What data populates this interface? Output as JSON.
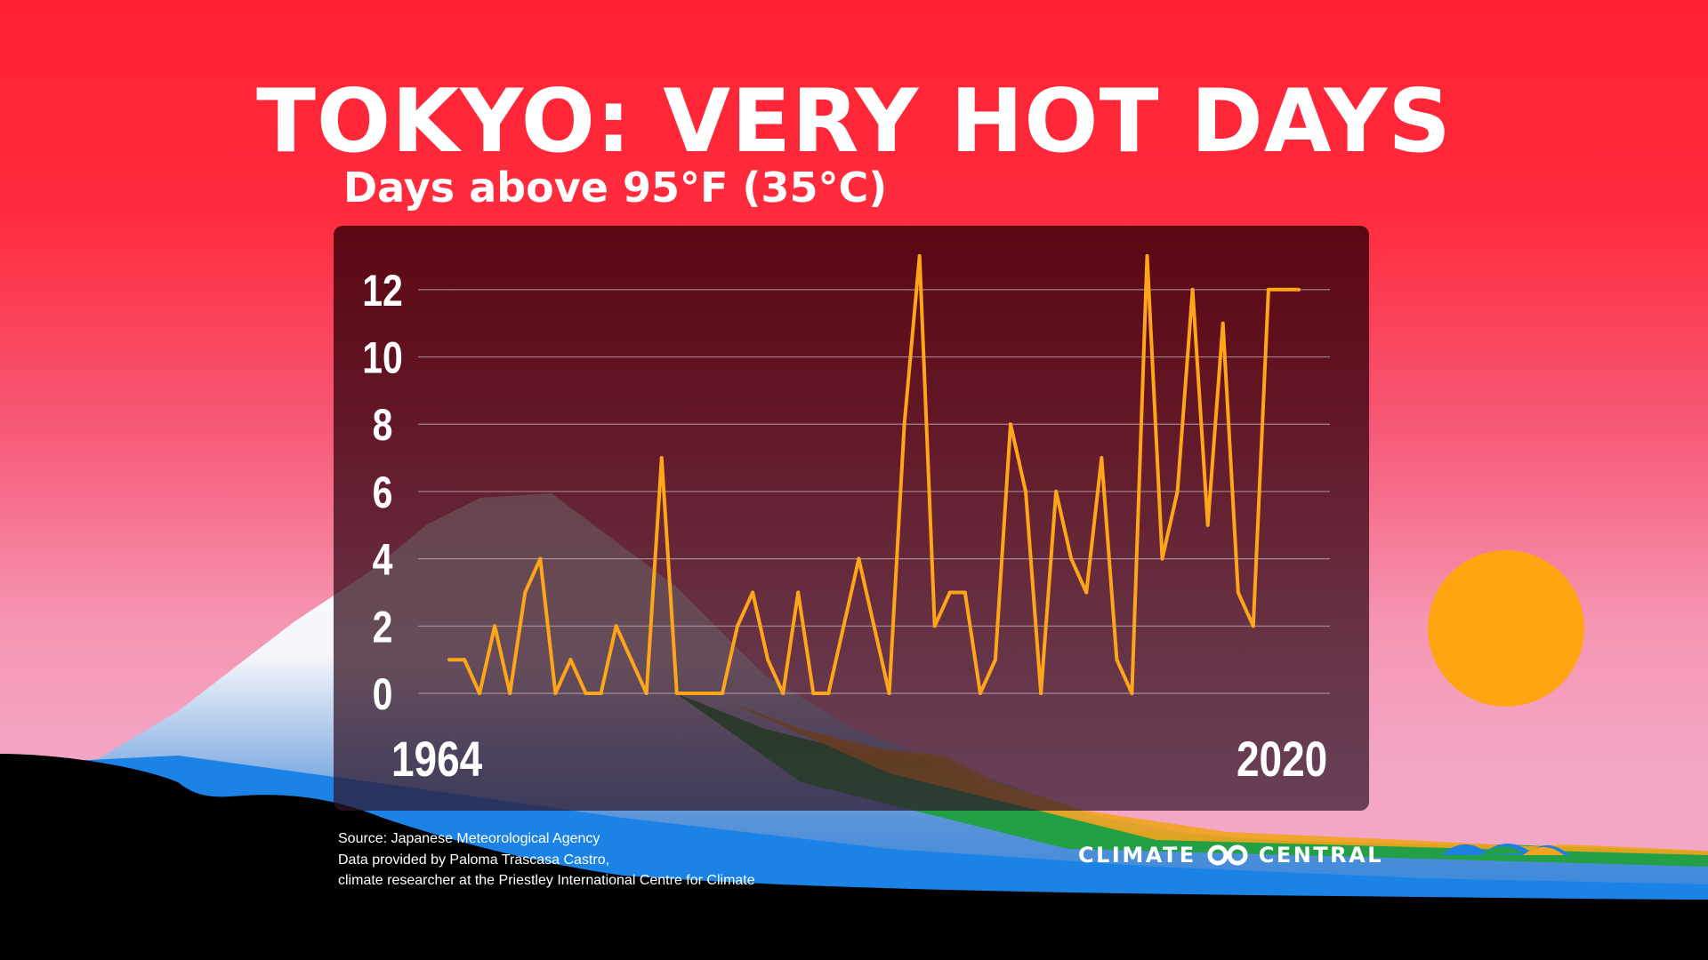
{
  "header": {
    "title": "TOKYO: VERY HOT DAYS",
    "subtitle": "Days above 95°F (35°C)"
  },
  "chart_data": {
    "type": "line",
    "title": "TOKYO: VERY HOT DAYS",
    "subtitle": "Days above 95°F (35°C)",
    "xlabel": "",
    "ylabel": "Days above 95°F (35°C)",
    "x_start_label": "1964",
    "x_end_label": "2020",
    "x": [
      1964,
      1965,
      1966,
      1967,
      1968,
      1969,
      1970,
      1971,
      1972,
      1973,
      1974,
      1975,
      1976,
      1977,
      1978,
      1979,
      1980,
      1981,
      1982,
      1983,
      1984,
      1985,
      1986,
      1987,
      1988,
      1989,
      1990,
      1991,
      1992,
      1993,
      1994,
      1995,
      1996,
      1997,
      1998,
      1999,
      2000,
      2001,
      2002,
      2003,
      2004,
      2005,
      2006,
      2007,
      2008,
      2009,
      2010,
      2011,
      2012,
      2013,
      2014,
      2015,
      2016,
      2017,
      2018,
      2019,
      2020
    ],
    "series": [
      {
        "name": "Days above 95°F",
        "color": "#ffa51a",
        "values": [
          1,
          1,
          0,
          2,
          0,
          3,
          4,
          0,
          1,
          0,
          0,
          2,
          1,
          0,
          7,
          0,
          0,
          0,
          0,
          2,
          3,
          1,
          0,
          3,
          0,
          0,
          2,
          4,
          2,
          0,
          8,
          13,
          2,
          3,
          3,
          0,
          1,
          8,
          6,
          0,
          6,
          4,
          3,
          7,
          1,
          0,
          13,
          4,
          6,
          12,
          5,
          11,
          3,
          2,
          12,
          12,
          12
        ]
      }
    ],
    "ylim": [
      0,
      13
    ],
    "yticks": [
      0,
      2,
      4,
      6,
      8,
      10,
      12
    ],
    "grid": true,
    "legend": "none"
  },
  "footer": {
    "source_lines": [
      "Source: Japanese Meteorological Agency",
      "Data provided by Paloma Trascasa Castro,",
      "climate researcher at the Priestley International Centre for Climate"
    ],
    "brand_left": "CLIMATE",
    "brand_right": "CENTRAL"
  },
  "colors": {
    "line": "#ffa51a",
    "grid": "#b8a8ac",
    "sun": "#ffa512",
    "text": "#ffffff"
  }
}
